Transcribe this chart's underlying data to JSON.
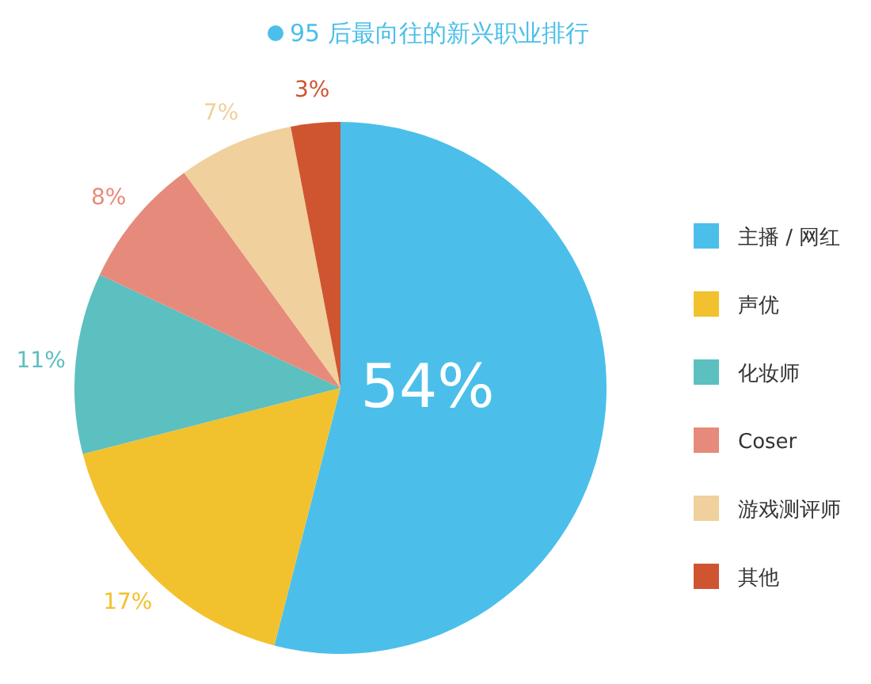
{
  "chart_data": {
    "type": "pie",
    "title": "95 后最向往的新兴职业排行",
    "categories": [
      "主播 / 网红",
      "声优",
      "化妆师",
      "Coser",
      "游戏测评师",
      "其他"
    ],
    "values": [
      54,
      17,
      11,
      8,
      7,
      3
    ],
    "colors": [
      "#4bbfea",
      "#f2c12e",
      "#5cbfc0",
      "#e68a7b",
      "#f0d09c",
      "#cf5530"
    ],
    "value_labels": [
      "54%",
      "17%",
      "11%",
      "8%",
      "7%",
      "3%"
    ],
    "legend": "right"
  }
}
